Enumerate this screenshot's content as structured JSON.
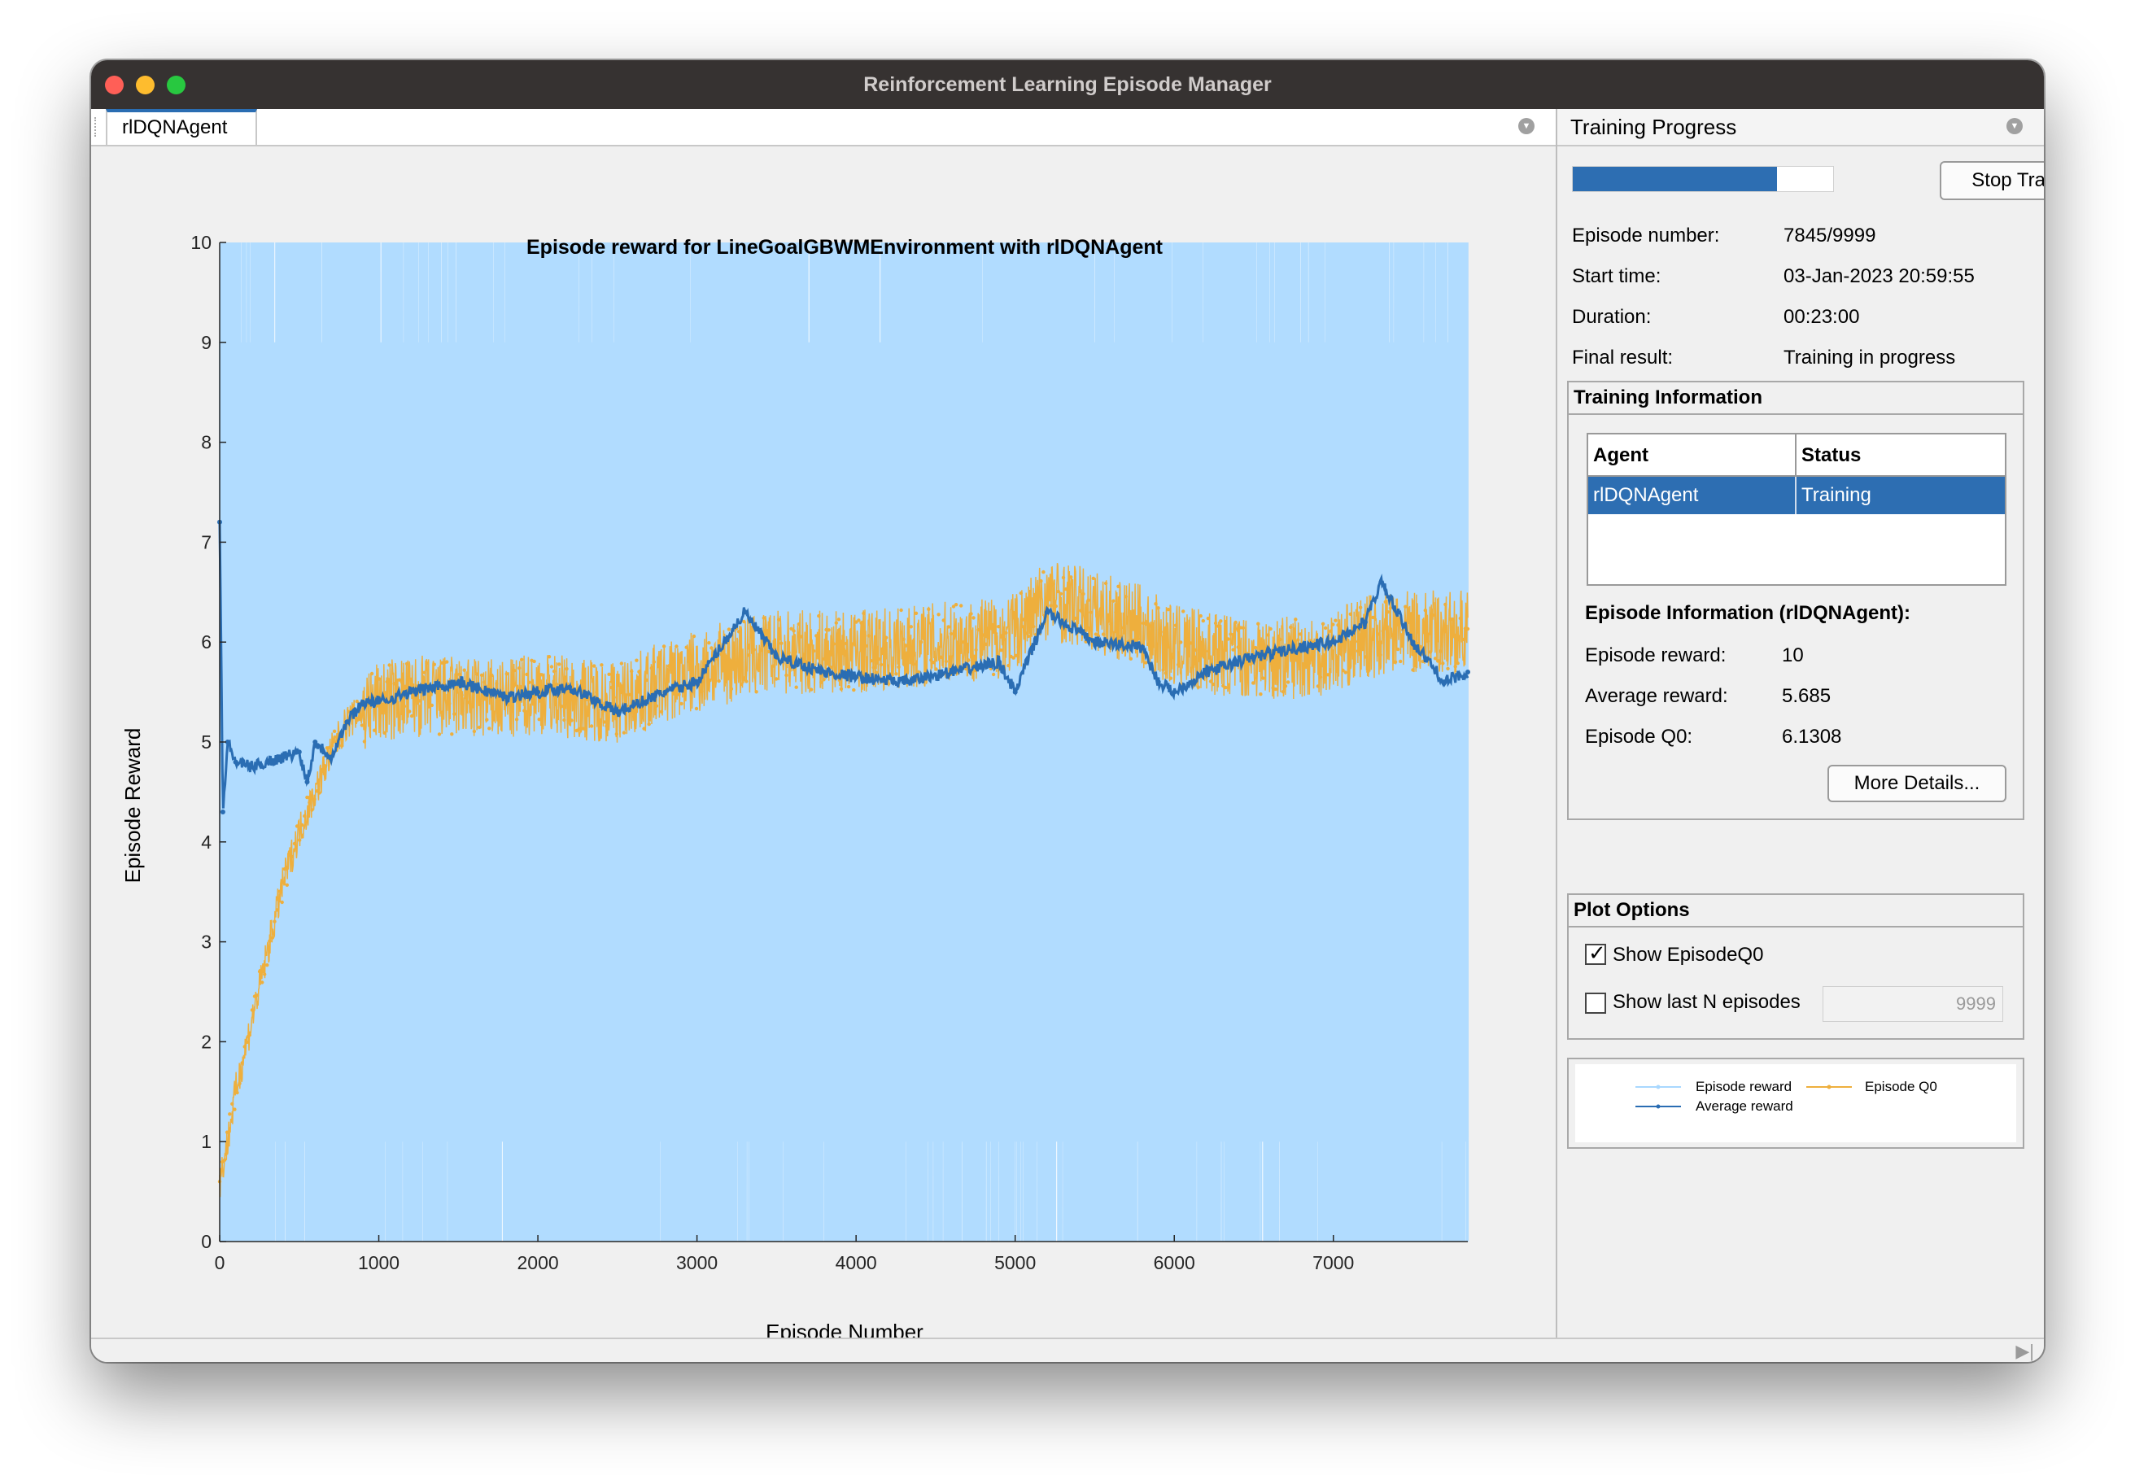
{
  "window": {
    "title": "Reinforcement Learning Episode Manager"
  },
  "left_tab": {
    "label": "rlDQNAgent"
  },
  "right_panel": {
    "title": "Training Progress",
    "progress_fraction": 0.7846,
    "stop_button": "Stop Training",
    "fields": [
      {
        "label": "Episode number:",
        "value": "7845/9999"
      },
      {
        "label": "Start time:",
        "value": "03-Jan-2023 20:59:55"
      },
      {
        "label": "Duration:",
        "value": "00:23:00"
      },
      {
        "label": "Final result:",
        "value": "Training in progress"
      }
    ],
    "training_info": {
      "title": "Training Information",
      "headers": [
        "Agent",
        "Status"
      ],
      "row": {
        "agent": "rlDQNAgent",
        "status": "Training"
      },
      "episode_info_title": "Episode Information (rlDQNAgent):",
      "fields": [
        {
          "label": "Episode reward:",
          "value": "10"
        },
        {
          "label": "Average reward:",
          "value": "5.685"
        },
        {
          "label": "Episode Q0:",
          "value": "6.1308"
        }
      ],
      "more_button": "More Details..."
    },
    "plot_options": {
      "title": "Plot Options",
      "show_q0_label": "Show EpisodeQ0",
      "show_q0_checked": true,
      "show_last_n_label": "Show last N episodes",
      "show_last_n_checked": false,
      "last_n_value": "9999"
    },
    "legend": {
      "episode_reward": "Episode reward",
      "average_reward": "Average reward",
      "episode_q0": "Episode Q0"
    }
  },
  "chart_data": {
    "type": "line",
    "title": "Episode reward for LineGoalGBWMEnvironment with rlDQNAgent",
    "xlabel": "Episode Number",
    "ylabel": "Episode Reward",
    "xlim": [
      0,
      7845
    ],
    "ylim": [
      0,
      10
    ],
    "xticks": [
      0,
      1000,
      2000,
      3000,
      4000,
      5000,
      6000,
      7000
    ],
    "yticks": [
      0,
      1,
      2,
      3,
      4,
      5,
      6,
      7,
      8,
      9,
      10
    ],
    "colors": {
      "episode_reward": "#a9d8ff",
      "average_reward": "#2a6db3",
      "episode_q0": "#eeaf3d"
    },
    "series": [
      {
        "name": "Episode reward",
        "description_values": "oscillates between 0 and 10 on every episode",
        "x": [
          0,
          7845
        ],
        "y_range": [
          0,
          10
        ]
      },
      {
        "name": "Average reward",
        "x": [
          0,
          20,
          50,
          100,
          200,
          300,
          400,
          500,
          550,
          600,
          700,
          800,
          900,
          1000,
          1200,
          1500,
          1800,
          2000,
          2200,
          2500,
          2800,
          3000,
          3300,
          3500,
          3800,
          4000,
          4300,
          4600,
          4900,
          5000,
          5200,
          5500,
          5800,
          5900,
          6000,
          6200,
          6500,
          6800,
          7000,
          7200,
          7300,
          7500,
          7700,
          7845
        ],
        "y": [
          7.2,
          4.3,
          5.0,
          4.8,
          4.75,
          4.8,
          4.85,
          4.9,
          4.6,
          5.0,
          4.85,
          5.2,
          5.4,
          5.4,
          5.5,
          5.6,
          5.45,
          5.5,
          5.55,
          5.3,
          5.5,
          5.6,
          6.3,
          5.85,
          5.7,
          5.65,
          5.6,
          5.7,
          5.8,
          5.5,
          6.3,
          6.0,
          5.95,
          5.6,
          5.5,
          5.7,
          5.85,
          5.95,
          6.0,
          6.2,
          6.6,
          6.0,
          5.6,
          5.7
        ]
      },
      {
        "name": "Episode Q0",
        "x": [
          0,
          50,
          100,
          200,
          300,
          400,
          500,
          600,
          700,
          800,
          900,
          1000,
          1200,
          1500,
          1800,
          2000,
          2200,
          2500,
          2800,
          3000,
          3300,
          3500,
          3800,
          4000,
          4300,
          4600,
          4900,
          5000,
          5200,
          5500,
          5800,
          6000,
          6200,
          6500,
          6800,
          7000,
          7200,
          7500,
          7700,
          7845
        ],
        "y": [
          0.6,
          1.0,
          1.5,
          2.2,
          2.9,
          3.6,
          4.1,
          4.5,
          4.9,
          5.2,
          5.3,
          5.4,
          5.45,
          5.45,
          5.4,
          5.5,
          5.45,
          5.4,
          5.6,
          5.7,
          5.85,
          5.9,
          5.9,
          5.9,
          5.95,
          6.0,
          6.05,
          6.1,
          6.45,
          6.3,
          6.15,
          5.95,
          5.9,
          5.85,
          5.85,
          5.9,
          6.05,
          6.1,
          6.1,
          6.1
        ]
      }
    ]
  }
}
